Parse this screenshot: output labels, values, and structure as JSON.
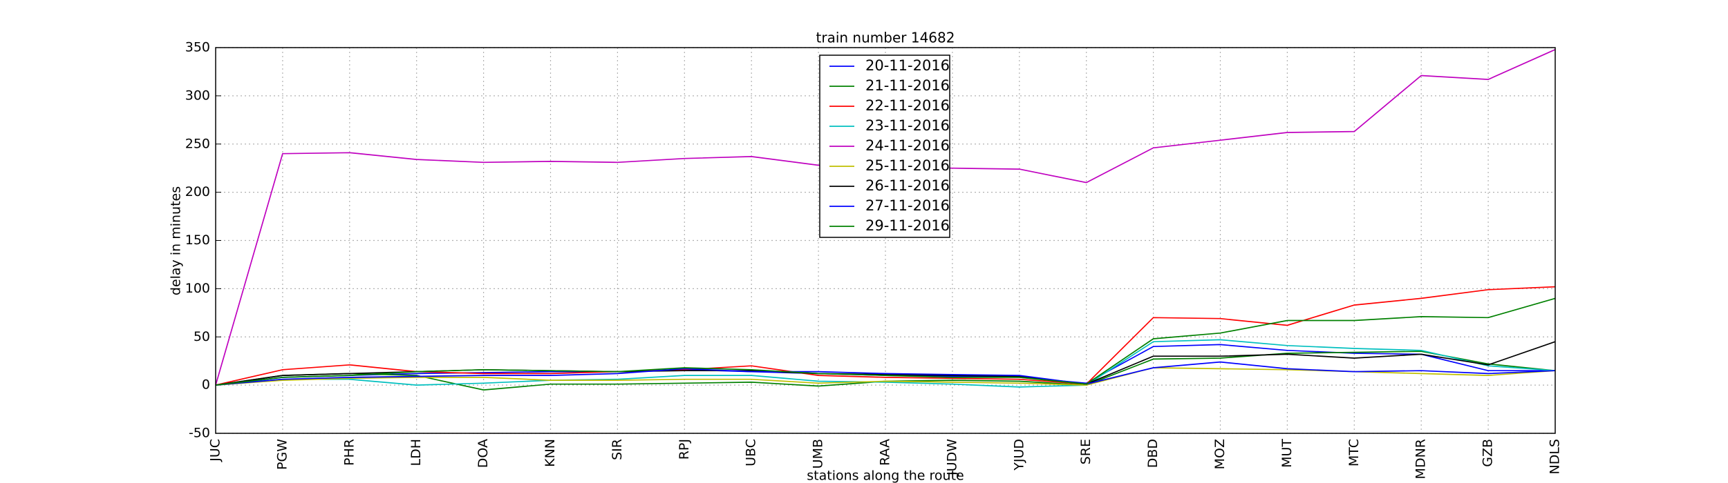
{
  "chart_data": {
    "type": "line",
    "title": "train number 14682",
    "x_label": "stations along the route",
    "y_label": "delay in minutes",
    "categories": [
      "JUC",
      "PGW",
      "PHR",
      "LDH",
      "DOA",
      "KNN",
      "SIR",
      "RPJ",
      "UBC",
      "UMB",
      "RAA",
      "JUDW",
      "YJUD",
      "SRE",
      "DBD",
      "MOZ",
      "MUT",
      "MTC",
      "MDNR",
      "GZB",
      "NDLS"
    ],
    "series": [
      {
        "name": "20-11-2016",
        "color": "#0000ff",
        "values": [
          0,
          8,
          10,
          12,
          13,
          14,
          14,
          16,
          14,
          12,
          10,
          9,
          8,
          2,
          40,
          42,
          36,
          33,
          32,
          15,
          15
        ]
      },
      {
        "name": "21-11-2016",
        "color": "#008000",
        "values": [
          0,
          10,
          12,
          10,
          -5,
          1,
          1,
          2,
          3,
          -1,
          4,
          5,
          4,
          0,
          27,
          28,
          33,
          34,
          35,
          22,
          15
        ]
      },
      {
        "name": "22-11-2016",
        "color": "#ff0000",
        "values": [
          0,
          16,
          21,
          14,
          12,
          12,
          14,
          16,
          20,
          10,
          8,
          7,
          6,
          1,
          70,
          69,
          62,
          83,
          90,
          99,
          102
        ]
      },
      {
        "name": "23-11-2016",
        "color": "#00bfbf",
        "values": [
          0,
          6,
          6,
          0,
          2,
          5,
          6,
          10,
          10,
          4,
          3,
          1,
          -2,
          0,
          45,
          47,
          41,
          38,
          36,
          20,
          15
        ]
      },
      {
        "name": "24-11-2016",
        "color": "#bf00bf",
        "values": [
          0,
          240,
          241,
          234,
          231,
          232,
          231,
          235,
          237,
          228,
          226,
          225,
          224,
          210,
          246,
          254,
          262,
          263,
          321,
          317,
          348
        ]
      },
      {
        "name": "25-11-2016",
        "color": "#bfbf00",
        "values": [
          0,
          5,
          7,
          8,
          8,
          5,
          5,
          6,
          6,
          2,
          4,
          3,
          2,
          0,
          18,
          17,
          16,
          14,
          12,
          10,
          15
        ]
      },
      {
        "name": "26-11-2016",
        "color": "#000000",
        "values": [
          0,
          10,
          12,
          14,
          16,
          15,
          14,
          15,
          15,
          12,
          11,
          10,
          9,
          1,
          30,
          30,
          32,
          28,
          32,
          21,
          45
        ]
      },
      {
        "name": "27-11-2016",
        "color": "#0000ff",
        "values": [
          0,
          6,
          8,
          9,
          10,
          10,
          12,
          17,
          14,
          14,
          12,
          11,
          10,
          1,
          18,
          24,
          17,
          14,
          15,
          12,
          15
        ]
      },
      {
        "name": "29-11-2016",
        "color": "#008000",
        "values": [
          0,
          8,
          10,
          14,
          16,
          15,
          14,
          18,
          16,
          12,
          10,
          8,
          8,
          1,
          48,
          54,
          67,
          67,
          71,
          70,
          90
        ]
      }
    ],
    "ylim": [
      -50,
      350
    ],
    "yticks": [
      -50,
      0,
      50,
      100,
      150,
      200,
      250,
      300,
      350
    ],
    "grid": true,
    "legend": "upper center"
  }
}
